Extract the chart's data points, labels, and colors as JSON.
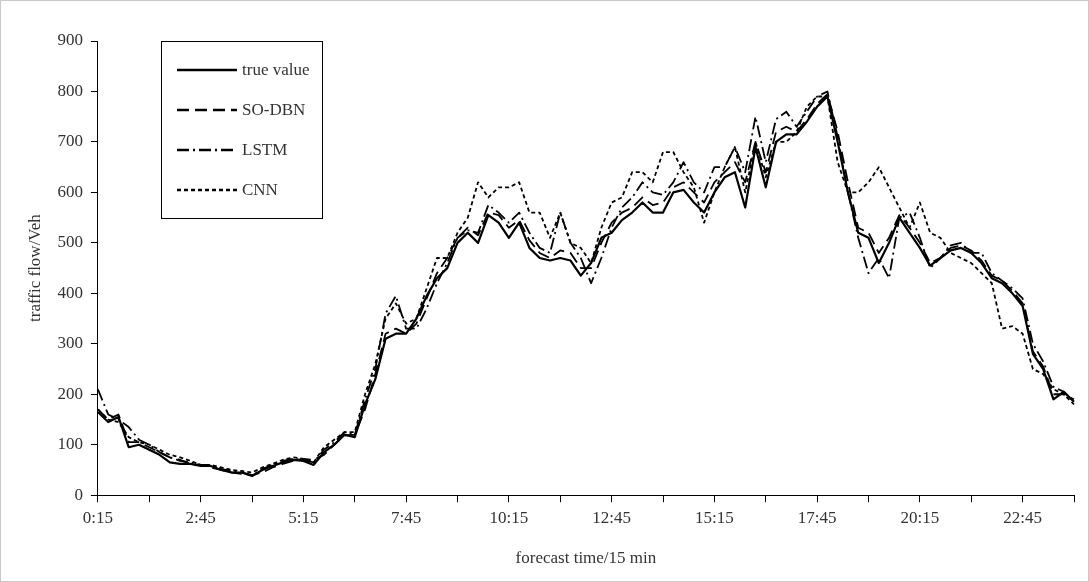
{
  "chart_data": {
    "type": "line",
    "xlabel": "forecast time/15 min",
    "ylabel": "traffic flow/Veh",
    "categories": [
      "0:15",
      null,
      null,
      null,
      null,
      null,
      null,
      null,
      null,
      null,
      "2:45",
      null,
      null,
      null,
      null,
      null,
      null,
      null,
      null,
      null,
      "5:15",
      null,
      null,
      null,
      null,
      null,
      null,
      null,
      null,
      null,
      "7:45",
      null,
      null,
      null,
      null,
      null,
      null,
      null,
      null,
      null,
      "10:15",
      null,
      null,
      null,
      null,
      null,
      null,
      null,
      null,
      null,
      "12:45",
      null,
      null,
      null,
      null,
      null,
      null,
      null,
      null,
      null,
      "15:15",
      null,
      null,
      null,
      null,
      null,
      null,
      null,
      null,
      null,
      "17:45",
      null,
      null,
      null,
      null,
      null,
      null,
      null,
      null,
      null,
      "20:15",
      null,
      null,
      null,
      null,
      null,
      null,
      null,
      null,
      null,
      "22:45",
      null,
      null,
      null,
      null,
      null
    ],
    "ylim": [
      0,
      900
    ],
    "yticks": [
      0,
      100,
      200,
      300,
      400,
      500,
      600,
      700,
      800,
      900
    ],
    "grid": false,
    "legend": "top left",
    "marker": "none",
    "series": [
      {
        "name": "true value",
        "color": "#000000",
        "line_style": "solid",
        "values": [
          165,
          145,
          155,
          95,
          100,
          90,
          80,
          65,
          62,
          62,
          58,
          58,
          50,
          45,
          45,
          38,
          50,
          58,
          65,
          70,
          68,
          60,
          85,
          100,
          120,
          115,
          180,
          230,
          310,
          320,
          320,
          350,
          395,
          430,
          450,
          500,
          520,
          500,
          555,
          540,
          510,
          540,
          490,
          470,
          465,
          470,
          465,
          435,
          460,
          510,
          520,
          545,
          560,
          580,
          560,
          560,
          600,
          605,
          580,
          560,
          600,
          630,
          640,
          570,
          690,
          610,
          700,
          715,
          715,
          740,
          770,
          790,
          700,
          600,
          520,
          510,
          460,
          500,
          550,
          520,
          490,
          455,
          470,
          485,
          490,
          480,
          460,
          430,
          420,
          400,
          375,
          280,
          250,
          190,
          205,
          185
        ]
      },
      {
        "name": "SO-DBN",
        "color": "#000000",
        "line_style": "dashed",
        "values": [
          170,
          150,
          160,
          105,
          105,
          95,
          85,
          75,
          70,
          62,
          60,
          55,
          50,
          45,
          42,
          40,
          45,
          55,
          62,
          68,
          72,
          70,
          80,
          100,
          118,
          120,
          170,
          240,
          320,
          330,
          320,
          340,
          390,
          440,
          470,
          510,
          530,
          515,
          560,
          555,
          530,
          545,
          505,
          480,
          470,
          485,
          480,
          450,
          450,
          500,
          540,
          560,
          570,
          590,
          575,
          580,
          610,
          620,
          600,
          580,
          620,
          640,
          660,
          620,
          700,
          640,
          720,
          730,
          720,
          745,
          775,
          795,
          720,
          620,
          530,
          520,
          480,
          510,
          555,
          530,
          500,
          460,
          470,
          490,
          495,
          485,
          465,
          435,
          425,
          405,
          380,
          285,
          255,
          200,
          200,
          190
        ]
      },
      {
        "name": "LSTM",
        "color": "#000000",
        "line_style": "dashdot",
        "values": [
          210,
          160,
          150,
          135,
          110,
          100,
          85,
          75,
          68,
          65,
          60,
          60,
          52,
          48,
          45,
          40,
          52,
          60,
          68,
          72,
          70,
          65,
          90,
          105,
          125,
          120,
          190,
          250,
          360,
          395,
          330,
          330,
          370,
          420,
          460,
          510,
          525,
          520,
          575,
          560,
          540,
          560,
          520,
          490,
          480,
          560,
          500,
          470,
          420,
          470,
          530,
          570,
          590,
          620,
          600,
          595,
          620,
          660,
          620,
          600,
          650,
          650,
          690,
          640,
          750,
          660,
          745,
          760,
          730,
          760,
          790,
          800,
          710,
          600,
          510,
          440,
          470,
          430,
          550,
          560,
          510,
          450,
          470,
          495,
          500,
          480,
          480,
          440,
          425,
          410,
          390,
          300,
          265,
          215,
          205,
          185
        ]
      },
      {
        "name": "CNN",
        "color": "#000000",
        "line_style": "dotted",
        "values": [
          170,
          150,
          145,
          115,
          105,
          100,
          90,
          80,
          75,
          68,
          60,
          60,
          55,
          50,
          48,
          45,
          55,
          62,
          70,
          75,
          72,
          65,
          95,
          110,
          125,
          125,
          200,
          260,
          350,
          380,
          340,
          350,
          410,
          470,
          470,
          520,
          550,
          620,
          590,
          610,
          610,
          620,
          560,
          560,
          510,
          560,
          500,
          490,
          460,
          530,
          580,
          590,
          640,
          640,
          620,
          680,
          680,
          640,
          610,
          540,
          600,
          650,
          690,
          600,
          700,
          630,
          700,
          700,
          720,
          770,
          790,
          790,
          660,
          600,
          600,
          620,
          650,
          610,
          570,
          530,
          580,
          520,
          510,
          480,
          470,
          460,
          440,
          420,
          330,
          335,
          320,
          250,
          240,
          210,
          200,
          180
        ]
      }
    ]
  }
}
